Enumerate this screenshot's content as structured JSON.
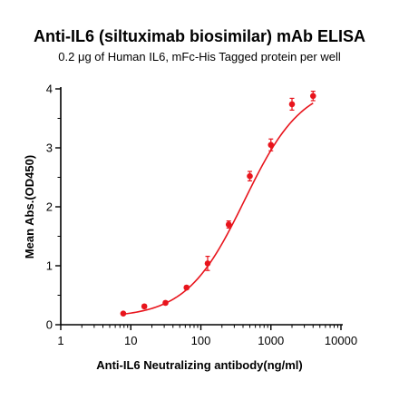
{
  "chart_data": {
    "type": "scatter",
    "title": "Anti-IL6 (siltuximab biosimilar) mAb ELISA",
    "subtitle": "0.2 μg of Human IL6, mFc-His Tagged protein per well",
    "xlabel": "Anti-IL6 Neutralizing antibody(ng/ml)",
    "ylabel": "Mean Abs.(OD450)",
    "xscale": "log",
    "xlim": [
      1,
      10000
    ],
    "ylim": [
      0,
      4
    ],
    "xticks": [
      "1",
      "10",
      "100",
      "1000",
      "10000"
    ],
    "yticks": [
      "0",
      "1",
      "2",
      "3",
      "4"
    ],
    "grid": false,
    "color": "#e8141c",
    "fit": "sigmoidal curve",
    "points": [
      {
        "x": 7.8,
        "y": 0.19,
        "err": 0.02
      },
      {
        "x": 15.6,
        "y": 0.31,
        "err": 0.03
      },
      {
        "x": 31.25,
        "y": 0.37,
        "err": 0.03
      },
      {
        "x": 62.5,
        "y": 0.63,
        "err": 0.03
      },
      {
        "x": 125,
        "y": 1.04,
        "err": 0.12
      },
      {
        "x": 250,
        "y": 1.7,
        "err": 0.06
      },
      {
        "x": 500,
        "y": 2.52,
        "err": 0.08
      },
      {
        "x": 1000,
        "y": 3.05,
        "err": 0.1
      },
      {
        "x": 2000,
        "y": 3.74,
        "err": 0.1
      },
      {
        "x": 4000,
        "y": 3.88,
        "err": 0.08
      }
    ]
  }
}
